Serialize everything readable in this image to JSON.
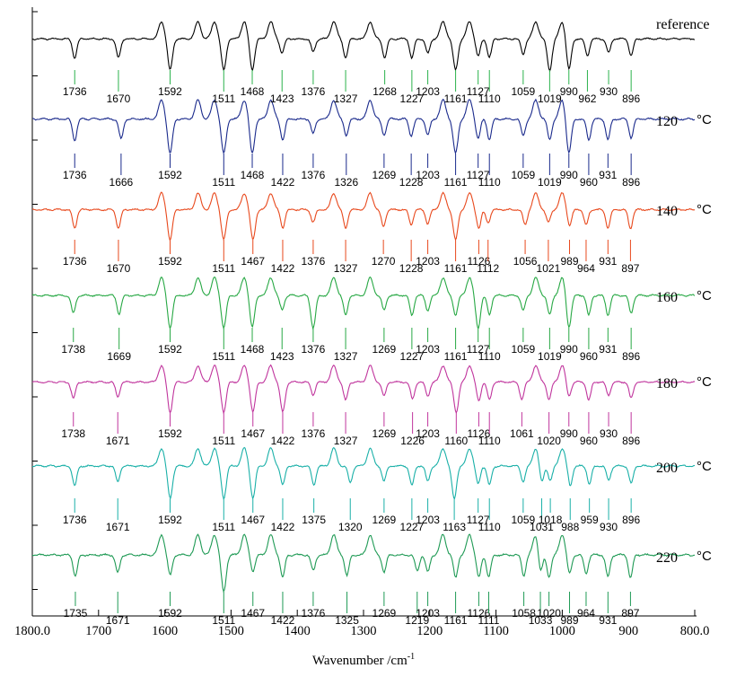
{
  "chart_data": {
    "type": "line",
    "title": "",
    "xlabel": "Wavenumber /cm",
    "xlabel_sup": "-1",
    "x_range": [
      1800,
      800
    ],
    "x_ticks": [
      1800,
      1700,
      1600,
      1500,
      1400,
      1300,
      1200,
      1100,
      1000,
      900,
      800
    ],
    "x_tick_labels": [
      "1800.0",
      "1700",
      "1600",
      "1500",
      "1400",
      "1300",
      "1200",
      "1100",
      "1000",
      "900",
      "800.0"
    ],
    "ylabel": "",
    "temperature_unit": "°C",
    "series": [
      {
        "name": "reference",
        "temp": "",
        "color": "#000000",
        "strong": [
          1592,
          1511,
          1468,
          1161,
          990,
          1019
        ],
        "peaks": [
          {
            "x": 1736,
            "label": "1736"
          },
          {
            "x": 1670,
            "label": "1670"
          },
          {
            "x": 1592,
            "label": "1592"
          },
          {
            "x": 1511,
            "label": "1511"
          },
          {
            "x": 1468,
            "label": "1468"
          },
          {
            "x": 1423,
            "label": "1423"
          },
          {
            "x": 1376,
            "label": "1376"
          },
          {
            "x": 1327,
            "label": "1327"
          },
          {
            "x": 1268,
            "label": "1268"
          },
          {
            "x": 1227,
            "label": "1227"
          },
          {
            "x": 1203,
            "label": "1203"
          },
          {
            "x": 1161,
            "label": "1161"
          },
          {
            "x": 1127,
            "label": "1127"
          },
          {
            "x": 1110,
            "label": "1110"
          },
          {
            "x": 1059,
            "label": "1059"
          },
          {
            "x": 1019,
            "label": "1019"
          },
          {
            "x": 990,
            "label": "990"
          },
          {
            "x": 962,
            "label": "962"
          },
          {
            "x": 930,
            "label": "930"
          },
          {
            "x": 896,
            "label": "896"
          }
        ]
      },
      {
        "name": "120",
        "temp": "120",
        "color": "#1a2a8c",
        "strong": [
          1592,
          1511,
          1468,
          1161,
          990
        ],
        "peaks": [
          {
            "x": 1736,
            "label": "1736"
          },
          {
            "x": 1666,
            "label": "1666"
          },
          {
            "x": 1592,
            "label": "1592"
          },
          {
            "x": 1511,
            "label": "1511"
          },
          {
            "x": 1468,
            "label": "1468"
          },
          {
            "x": 1422,
            "label": "1422"
          },
          {
            "x": 1376,
            "label": "1376"
          },
          {
            "x": 1326,
            "label": "1326"
          },
          {
            "x": 1269,
            "label": "1269"
          },
          {
            "x": 1228,
            "label": "1228"
          },
          {
            "x": 1203,
            "label": "1203"
          },
          {
            "x": 1161,
            "label": "1161"
          },
          {
            "x": 1127,
            "label": "1127"
          },
          {
            "x": 1110,
            "label": "1110"
          },
          {
            "x": 1059,
            "label": "1059"
          },
          {
            "x": 1019,
            "label": "1019"
          },
          {
            "x": 990,
            "label": "990"
          },
          {
            "x": 960,
            "label": "960"
          },
          {
            "x": 931,
            "label": "931"
          },
          {
            "x": 896,
            "label": "896"
          }
        ]
      },
      {
        "name": "140",
        "temp": "140",
        "color": "#e8491d",
        "strong": [
          1592,
          1511,
          1467,
          1161
        ],
        "peaks": [
          {
            "x": 1736,
            "label": "1736"
          },
          {
            "x": 1670,
            "label": "1670"
          },
          {
            "x": 1592,
            "label": "1592"
          },
          {
            "x": 1511,
            "label": "1511"
          },
          {
            "x": 1467,
            "label": "1467"
          },
          {
            "x": 1422,
            "label": "1422"
          },
          {
            "x": 1376,
            "label": "1376"
          },
          {
            "x": 1327,
            "label": "1327"
          },
          {
            "x": 1270,
            "label": "1270"
          },
          {
            "x": 1228,
            "label": "1228"
          },
          {
            "x": 1203,
            "label": "1203"
          },
          {
            "x": 1161,
            "label": "1161"
          },
          {
            "x": 1126,
            "label": "1126"
          },
          {
            "x": 1112,
            "label": "1112"
          },
          {
            "x": 1056,
            "label": "1056"
          },
          {
            "x": 1021,
            "label": "1021"
          },
          {
            "x": 989,
            "label": "989"
          },
          {
            "x": 964,
            "label": "964"
          },
          {
            "x": 931,
            "label": "931"
          },
          {
            "x": 897,
            "label": "897"
          }
        ]
      },
      {
        "name": "160",
        "temp": "160",
        "color": "#27a844",
        "strong": [
          1592,
          1511,
          1468,
          1376,
          1127,
          990
        ],
        "peaks": [
          {
            "x": 1738,
            "label": "1738"
          },
          {
            "x": 1669,
            "label": "1669"
          },
          {
            "x": 1592,
            "label": "1592"
          },
          {
            "x": 1511,
            "label": "1511"
          },
          {
            "x": 1468,
            "label": "1468"
          },
          {
            "x": 1423,
            "label": "1423"
          },
          {
            "x": 1376,
            "label": "1376"
          },
          {
            "x": 1327,
            "label": "1327"
          },
          {
            "x": 1269,
            "label": "1269"
          },
          {
            "x": 1227,
            "label": "1227"
          },
          {
            "x": 1203,
            "label": "1203"
          },
          {
            "x": 1161,
            "label": "1161"
          },
          {
            "x": 1127,
            "label": "1127"
          },
          {
            "x": 1110,
            "label": "1110"
          },
          {
            "x": 1059,
            "label": "1059"
          },
          {
            "x": 1019,
            "label": "1019"
          },
          {
            "x": 990,
            "label": "990"
          },
          {
            "x": 960,
            "label": "960"
          },
          {
            "x": 931,
            "label": "931"
          },
          {
            "x": 896,
            "label": "896"
          }
        ]
      },
      {
        "name": "180",
        "temp": "180",
        "color": "#c0359d",
        "strong": [
          1592,
          1511,
          1467,
          1422,
          1160
        ],
        "peaks": [
          {
            "x": 1738,
            "label": "1738"
          },
          {
            "x": 1671,
            "label": "1671"
          },
          {
            "x": 1592,
            "label": "1592"
          },
          {
            "x": 1511,
            "label": "1511"
          },
          {
            "x": 1467,
            "label": "1467"
          },
          {
            "x": 1422,
            "label": "1422"
          },
          {
            "x": 1376,
            "label": "1376"
          },
          {
            "x": 1327,
            "label": "1327"
          },
          {
            "x": 1269,
            "label": "1269"
          },
          {
            "x": 1226,
            "label": "1226"
          },
          {
            "x": 1203,
            "label": "1203"
          },
          {
            "x": 1160,
            "label": "1160"
          },
          {
            "x": 1126,
            "label": "1126"
          },
          {
            "x": 1110,
            "label": "1110"
          },
          {
            "x": 1061,
            "label": "1061"
          },
          {
            "x": 1020,
            "label": "1020"
          },
          {
            "x": 990,
            "label": "990"
          },
          {
            "x": 960,
            "label": "960"
          },
          {
            "x": 930,
            "label": "930"
          },
          {
            "x": 896,
            "label": "896"
          }
        ]
      },
      {
        "name": "200",
        "temp": "200",
        "color": "#1ab0a8",
        "strong": [
          1592,
          1511,
          1467,
          1163
        ],
        "peaks": [
          {
            "x": 1736,
            "label": "1736"
          },
          {
            "x": 1671,
            "label": "1671"
          },
          {
            "x": 1592,
            "label": "1592"
          },
          {
            "x": 1511,
            "label": "1511"
          },
          {
            "x": 1467,
            "label": "1467"
          },
          {
            "x": 1422,
            "label": "1422"
          },
          {
            "x": 1375,
            "label": "1375"
          },
          {
            "x": 1320,
            "label": "1320"
          },
          {
            "x": 1269,
            "label": "1269"
          },
          {
            "x": 1227,
            "label": "1227"
          },
          {
            "x": 1203,
            "label": "1203"
          },
          {
            "x": 1163,
            "label": "1163"
          },
          {
            "x": 1127,
            "label": "1127"
          },
          {
            "x": 1110,
            "label": "1110"
          },
          {
            "x": 1059,
            "label": "1059"
          },
          {
            "x": 1031,
            "label": "1031"
          },
          {
            "x": 1018,
            "label": "1018"
          },
          {
            "x": 988,
            "label": "988"
          },
          {
            "x": 959,
            "label": "959"
          },
          {
            "x": 930,
            "label": "930"
          },
          {
            "x": 896,
            "label": "896"
          }
        ]
      },
      {
        "name": "220",
        "temp": "220",
        "color": "#1f9a55",
        "strong": [
          1511
        ],
        "peaks": [
          {
            "x": 1735,
            "label": "1735"
          },
          {
            "x": 1671,
            "label": "1671"
          },
          {
            "x": 1592,
            "label": "1592"
          },
          {
            "x": 1511,
            "label": "1511"
          },
          {
            "x": 1467,
            "label": "1467"
          },
          {
            "x": 1422,
            "label": "1422"
          },
          {
            "x": 1376,
            "label": "1376"
          },
          {
            "x": 1325,
            "label": "1325"
          },
          {
            "x": 1269,
            "label": "1269"
          },
          {
            "x": 1219,
            "label": "1219"
          },
          {
            "x": 1203,
            "label": "1203"
          },
          {
            "x": 1161,
            "label": "1161"
          },
          {
            "x": 1126,
            "label": "1126"
          },
          {
            "x": 1111,
            "label": "1111"
          },
          {
            "x": 1058,
            "label": "1058"
          },
          {
            "x": 1033,
            "label": "1033"
          },
          {
            "x": 1020,
            "label": "1020"
          },
          {
            "x": 989,
            "label": "989"
          },
          {
            "x": 964,
            "label": "964"
          },
          {
            "x": 931,
            "label": "931"
          },
          {
            "x": 897,
            "label": "897"
          }
        ]
      }
    ]
  }
}
